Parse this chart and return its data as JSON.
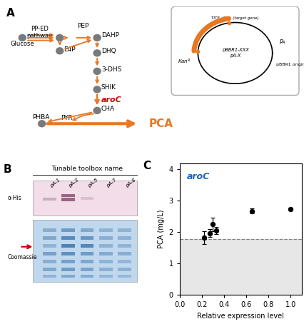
{
  "panel_C": {
    "x": [
      0.22,
      0.27,
      0.3,
      0.33,
      0.65,
      1.0
    ],
    "y": [
      1.83,
      1.97,
      2.25,
      2.05,
      2.67,
      2.73
    ],
    "yerr": [
      0.2,
      0.12,
      0.22,
      0.12,
      0.08,
      0.04
    ],
    "wildtype_line": 1.78,
    "xlabel": "Relative expression level",
    "ylabel": "PCA (mg/L)",
    "gene_label": "aroC",
    "gene_label_color": "#1565C0",
    "xlim": [
      0,
      1.1
    ],
    "ylim": [
      0,
      4.2
    ],
    "xticks": [
      0,
      0.2,
      0.4,
      0.6,
      0.8,
      1.0
    ],
    "yticks": [
      0,
      1,
      2,
      3,
      4
    ],
    "shaded_color": "#d8d8d8"
  },
  "panel_B": {
    "title": "Tunable toolbox name",
    "lane_labels": [
      "pA-1",
      "pA-3",
      "pA-5",
      "pA-7",
      "pA-8"
    ],
    "alpha_his_bg": "#f2dde8",
    "coomassie_bg": "#c0d8ee",
    "arrow_color": "#cc0000"
  },
  "orange_color": "#E87722",
  "red_gene_color": "#cc0000",
  "gray_node_color": "#7a7a7a",
  "font_size_labels": 6.5,
  "font_size_axis": 7
}
